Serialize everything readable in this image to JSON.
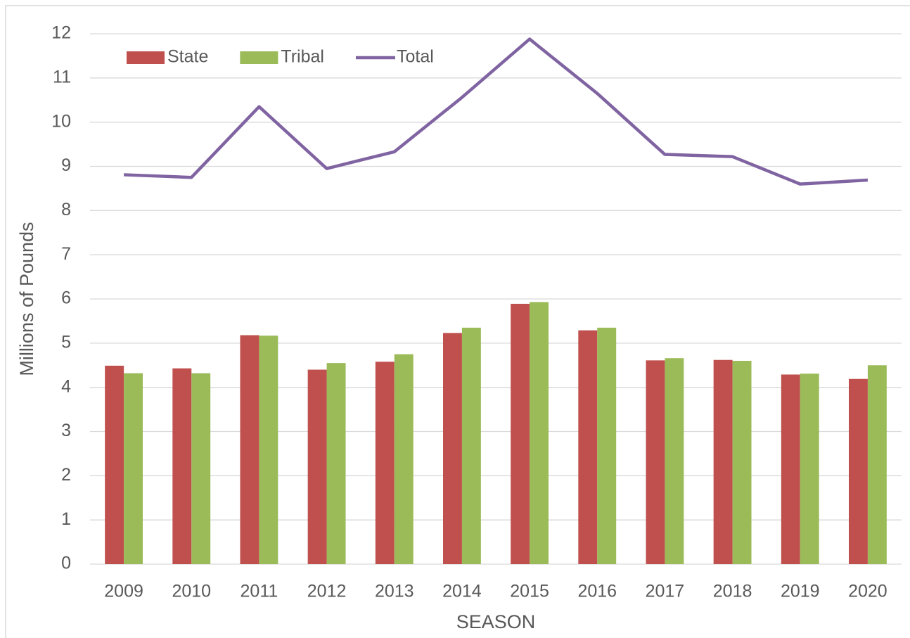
{
  "chart_data": {
    "type": "bar",
    "categories": [
      "2009",
      "2010",
      "2011",
      "2012",
      "2013",
      "2014",
      "2015",
      "2016",
      "2017",
      "2018",
      "2019",
      "2020"
    ],
    "series": [
      {
        "name": "State",
        "type": "bar",
        "color": "#c0504d",
        "values": [
          4.49,
          4.43,
          5.18,
          4.4,
          4.58,
          5.23,
          5.89,
          5.29,
          4.61,
          4.62,
          4.29,
          4.19
        ]
      },
      {
        "name": "Tribal",
        "type": "bar",
        "color": "#9bbb59",
        "values": [
          4.32,
          4.32,
          5.17,
          4.55,
          4.75,
          5.35,
          5.93,
          5.35,
          4.66,
          4.6,
          4.31,
          4.5
        ]
      },
      {
        "name": "Total",
        "type": "line",
        "color": "#8064a2",
        "values": [
          8.81,
          8.75,
          10.35,
          8.95,
          9.33,
          10.56,
          11.88,
          10.65,
          9.27,
          9.22,
          8.6,
          8.69
        ]
      }
    ],
    "ylabel": "Millions of Pounds",
    "xlabel": "SEASON",
    "ylim": [
      0,
      12
    ],
    "yticks": [
      0,
      1,
      2,
      3,
      4,
      5,
      6,
      7,
      8,
      9,
      10,
      11,
      12
    ],
    "grid": true,
    "legend": "top-left"
  }
}
